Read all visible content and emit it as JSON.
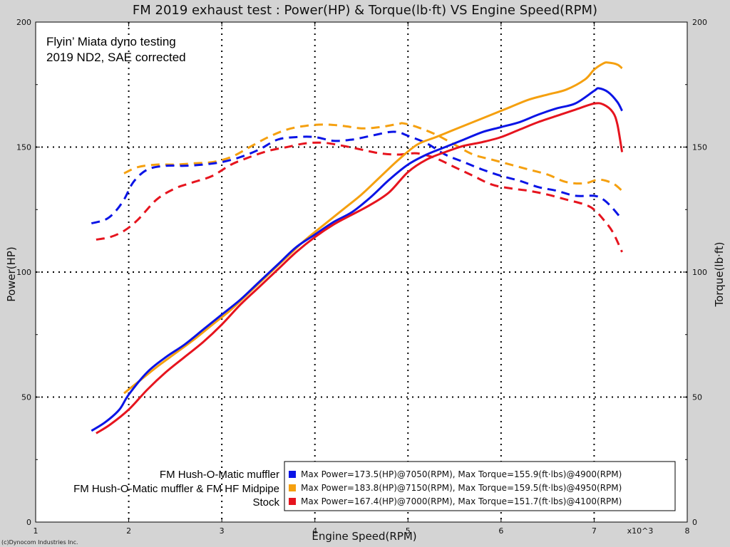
{
  "chart_data": {
    "type": "line",
    "title": "FM 2019 exhaust test : Power(HP) & Torque(lb·ft) VS Engine Speed(RPM)",
    "xlabel": "Engine Speed(RPM)",
    "ylabel_left": "Power(HP)",
    "ylabel_right": "Torque(lb·ft)",
    "x_multiplier_label": "x10^3",
    "xlim": [
      1,
      8
    ],
    "ylim": [
      0,
      200
    ],
    "xticks": [
      1,
      2,
      3,
      4,
      5,
      6,
      7,
      8
    ],
    "yticks": [
      0,
      50,
      100,
      150,
      200
    ],
    "grid": true,
    "annotation": [
      "Flyin’ Miata dyno testing",
      "2019 ND2, SAE corrected"
    ],
    "series": [
      {
        "name": "FM Hush-O-Matic muffler",
        "color": "#0a14e6",
        "legend_text": "Max Power=173.5(HP)@7050(RPM), Max Torque=155.9(ft·lbs)@4900(RPM)",
        "power": [
          [
            1.6,
            36.5
          ],
          [
            1.75,
            40
          ],
          [
            1.9,
            45
          ],
          [
            2.0,
            51
          ],
          [
            2.2,
            60
          ],
          [
            2.4,
            66
          ],
          [
            2.6,
            71
          ],
          [
            2.8,
            77
          ],
          [
            3.0,
            83
          ],
          [
            3.2,
            89
          ],
          [
            3.4,
            96
          ],
          [
            3.6,
            103
          ],
          [
            3.8,
            110
          ],
          [
            4.0,
            115
          ],
          [
            4.2,
            120
          ],
          [
            4.4,
            124
          ],
          [
            4.6,
            130
          ],
          [
            4.8,
            137
          ],
          [
            5.0,
            143
          ],
          [
            5.2,
            147
          ],
          [
            5.4,
            150
          ],
          [
            5.6,
            153
          ],
          [
            5.8,
            156
          ],
          [
            6.0,
            158
          ],
          [
            6.2,
            160
          ],
          [
            6.4,
            163
          ],
          [
            6.6,
            165.5
          ],
          [
            6.8,
            167.5
          ],
          [
            7.0,
            172.5
          ],
          [
            7.05,
            173.5
          ],
          [
            7.15,
            172
          ],
          [
            7.25,
            168
          ],
          [
            7.3,
            164.5
          ]
        ],
        "torque": [
          [
            1.6,
            119.5
          ],
          [
            1.75,
            121
          ],
          [
            1.85,
            124
          ],
          [
            1.95,
            129
          ],
          [
            2.05,
            136
          ],
          [
            2.2,
            141
          ],
          [
            2.4,
            142.5
          ],
          [
            2.6,
            142.5
          ],
          [
            2.8,
            143
          ],
          [
            3.0,
            144
          ],
          [
            3.2,
            146
          ],
          [
            3.4,
            149
          ],
          [
            3.6,
            153
          ],
          [
            3.8,
            154
          ],
          [
            4.0,
            154
          ],
          [
            4.2,
            152.5
          ],
          [
            4.4,
            153
          ],
          [
            4.6,
            154.5
          ],
          [
            4.8,
            156
          ],
          [
            4.9,
            155.9
          ],
          [
            5.0,
            154.5
          ],
          [
            5.2,
            151.5
          ],
          [
            5.4,
            147
          ],
          [
            5.6,
            144
          ],
          [
            5.8,
            141
          ],
          [
            6.0,
            138.5
          ],
          [
            6.2,
            136.5
          ],
          [
            6.4,
            134
          ],
          [
            6.6,
            132.5
          ],
          [
            6.8,
            130.5
          ],
          [
            7.0,
            130.5
          ],
          [
            7.1,
            129
          ],
          [
            7.2,
            125.5
          ],
          [
            7.3,
            121
          ]
        ]
      },
      {
        "name": "FM Hush-O-Matic muffler & FM HF Midpipe",
        "color": "#f5a00f",
        "legend_text": "Max Power=183.8(HP)@7150(RPM), Max Torque=159.5(ft·lbs)@4950(RPM)",
        "power": [
          [
            1.95,
            51.5
          ],
          [
            2.1,
            56
          ],
          [
            2.3,
            62
          ],
          [
            2.5,
            67.5
          ],
          [
            2.7,
            73
          ],
          [
            2.9,
            79
          ],
          [
            3.1,
            85
          ],
          [
            3.3,
            92
          ],
          [
            3.5,
            99
          ],
          [
            3.7,
            106
          ],
          [
            3.9,
            113
          ],
          [
            4.1,
            119
          ],
          [
            4.3,
            125
          ],
          [
            4.5,
            131
          ],
          [
            4.7,
            138
          ],
          [
            4.9,
            145
          ],
          [
            5.1,
            151
          ],
          [
            5.3,
            154
          ],
          [
            5.5,
            157
          ],
          [
            5.7,
            160
          ],
          [
            5.9,
            163
          ],
          [
            6.1,
            166
          ],
          [
            6.3,
            169
          ],
          [
            6.5,
            171
          ],
          [
            6.7,
            173
          ],
          [
            6.9,
            177
          ],
          [
            7.0,
            181
          ],
          [
            7.1,
            183.5
          ],
          [
            7.15,
            183.8
          ],
          [
            7.25,
            183
          ],
          [
            7.3,
            181.5
          ]
        ],
        "torque": [
          [
            1.95,
            139.5
          ],
          [
            2.1,
            142
          ],
          [
            2.3,
            143
          ],
          [
            2.5,
            143
          ],
          [
            2.7,
            143.5
          ],
          [
            2.9,
            144
          ],
          [
            3.1,
            146
          ],
          [
            3.3,
            150
          ],
          [
            3.5,
            154
          ],
          [
            3.7,
            157
          ],
          [
            3.9,
            158.5
          ],
          [
            4.1,
            159
          ],
          [
            4.3,
            158.5
          ],
          [
            4.5,
            157.5
          ],
          [
            4.7,
            158
          ],
          [
            4.9,
            159.3
          ],
          [
            4.95,
            159.5
          ],
          [
            5.1,
            158
          ],
          [
            5.3,
            155
          ],
          [
            5.5,
            151
          ],
          [
            5.7,
            147
          ],
          [
            5.9,
            145
          ],
          [
            6.1,
            143
          ],
          [
            6.3,
            141
          ],
          [
            6.5,
            139
          ],
          [
            6.7,
            136
          ],
          [
            6.9,
            135.5
          ],
          [
            7.05,
            137
          ],
          [
            7.2,
            135.5
          ],
          [
            7.3,
            132.5
          ]
        ]
      },
      {
        "name": "Stock",
        "color": "#e6141e",
        "legend_text": "Max Power=167.4(HP)@7000(RPM), Max Torque=151.7(ft·lbs)@4100(RPM)",
        "power": [
          [
            1.65,
            35.5
          ],
          [
            1.8,
            39
          ],
          [
            2.0,
            45
          ],
          [
            2.2,
            53
          ],
          [
            2.4,
            60
          ],
          [
            2.6,
            66
          ],
          [
            2.8,
            72
          ],
          [
            3.0,
            79
          ],
          [
            3.2,
            87
          ],
          [
            3.4,
            94
          ],
          [
            3.6,
            101
          ],
          [
            3.8,
            108
          ],
          [
            4.0,
            114
          ],
          [
            4.2,
            119
          ],
          [
            4.4,
            123
          ],
          [
            4.6,
            127
          ],
          [
            4.8,
            132
          ],
          [
            5.0,
            140
          ],
          [
            5.2,
            145
          ],
          [
            5.4,
            148
          ],
          [
            5.6,
            150.5
          ],
          [
            5.8,
            152
          ],
          [
            6.0,
            154
          ],
          [
            6.2,
            157
          ],
          [
            6.4,
            160
          ],
          [
            6.6,
            162.5
          ],
          [
            6.8,
            165
          ],
          [
            7.0,
            167.4
          ],
          [
            7.1,
            167
          ],
          [
            7.2,
            164
          ],
          [
            7.25,
            159
          ],
          [
            7.3,
            148
          ]
        ],
        "torque": [
          [
            1.65,
            113
          ],
          [
            1.8,
            114
          ],
          [
            1.95,
            116.5
          ],
          [
            2.1,
            121
          ],
          [
            2.3,
            129
          ],
          [
            2.5,
            133.5
          ],
          [
            2.7,
            136
          ],
          [
            2.9,
            138.5
          ],
          [
            3.1,
            143
          ],
          [
            3.3,
            146
          ],
          [
            3.5,
            148.5
          ],
          [
            3.7,
            150
          ],
          [
            3.9,
            151.5
          ],
          [
            4.1,
            151.7
          ],
          [
            4.3,
            150.5
          ],
          [
            4.5,
            149
          ],
          [
            4.7,
            147.5
          ],
          [
            4.9,
            147
          ],
          [
            5.1,
            147.5
          ],
          [
            5.3,
            145.5
          ],
          [
            5.5,
            142
          ],
          [
            5.7,
            138.5
          ],
          [
            5.9,
            135
          ],
          [
            6.1,
            133.5
          ],
          [
            6.3,
            132.5
          ],
          [
            6.5,
            131
          ],
          [
            6.7,
            129
          ],
          [
            6.9,
            127
          ],
          [
            7.0,
            125
          ],
          [
            7.1,
            121
          ],
          [
            7.2,
            116
          ],
          [
            7.3,
            108
          ]
        ]
      }
    ]
  },
  "copyright": "(c)Dynocom Industries Inc."
}
